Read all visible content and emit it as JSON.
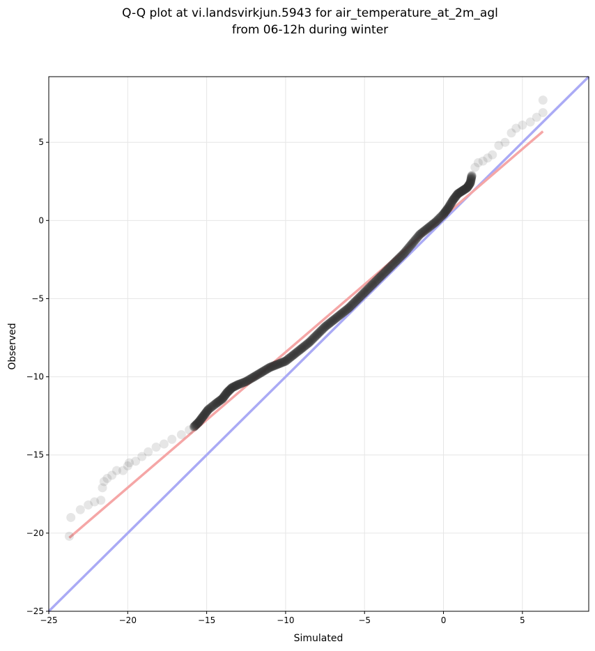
{
  "chart_data": {
    "type": "scatter",
    "title": "Q-Q plot at vi.landsvirkjun.5943 for air_temperature_at_2m_agl",
    "subtitle": "from 06-12h during winter",
    "xlabel": "Simulated",
    "ylabel": "Observed",
    "xlim": [
      -25,
      9.2
    ],
    "ylim": [
      -25,
      9.2
    ],
    "xticks": [
      -25,
      -20,
      -15,
      -10,
      -5,
      0,
      5
    ],
    "yticks": [
      -25,
      -20,
      -15,
      -10,
      -5,
      0,
      5
    ],
    "xtick_labels": [
      "−25",
      "−20",
      "−15",
      "−10",
      "−5",
      "0",
      "5"
    ],
    "ytick_labels": [
      "−25",
      "−20",
      "−15",
      "−10",
      "−5",
      "0",
      "5"
    ],
    "grid": true,
    "colors": {
      "points": "#333333",
      "identity_line": "#aaaaf5",
      "fit_line": "#f5a6a6"
    },
    "quantile_anchors": [
      [
        -23.7,
        -20.2
      ],
      [
        -23.6,
        -19.0
      ],
      [
        -23.0,
        -18.5
      ],
      [
        -22.5,
        -18.2
      ],
      [
        -22.1,
        -18.0
      ],
      [
        -21.7,
        -17.9
      ],
      [
        -21.6,
        -17.1
      ],
      [
        -21.5,
        -16.7
      ],
      [
        -21.3,
        -16.5
      ],
      [
        -21.0,
        -16.3
      ],
      [
        -20.7,
        -16.0
      ],
      [
        -20.3,
        -16.0
      ],
      [
        -20.0,
        -15.7
      ],
      [
        -19.9,
        -15.5
      ],
      [
        -19.5,
        -15.4
      ],
      [
        -19.1,
        -15.1
      ],
      [
        -18.7,
        -14.8
      ],
      [
        -18.2,
        -14.5
      ],
      [
        -17.7,
        -14.3
      ],
      [
        -17.2,
        -14.0
      ],
      [
        -16.6,
        -13.7
      ],
      [
        -16.1,
        -13.4
      ],
      [
        -15.8,
        -13.2
      ],
      [
        -15.5,
        -12.9
      ],
      [
        -15.2,
        -12.5
      ],
      [
        -14.9,
        -12.1
      ],
      [
        -14.4,
        -11.7
      ],
      [
        -14.0,
        -11.4
      ],
      [
        -13.7,
        -11.0
      ],
      [
        -13.4,
        -10.7
      ],
      [
        -13.0,
        -10.5
      ],
      [
        -12.5,
        -10.3
      ],
      [
        -12.0,
        -10.0
      ],
      [
        -11.5,
        -9.7
      ],
      [
        -11.0,
        -9.4
      ],
      [
        -10.5,
        -9.2
      ],
      [
        -10.0,
        -9.0
      ],
      [
        -9.5,
        -8.6
      ],
      [
        -9.0,
        -8.2
      ],
      [
        -8.5,
        -7.8
      ],
      [
        -8.0,
        -7.3
      ],
      [
        -7.5,
        -6.8
      ],
      [
        -7.0,
        -6.4
      ],
      [
        -6.5,
        -6.0
      ],
      [
        -6.0,
        -5.6
      ],
      [
        -5.5,
        -5.1
      ],
      [
        -5.0,
        -4.6
      ],
      [
        -4.5,
        -4.1
      ],
      [
        -4.0,
        -3.6
      ],
      [
        -3.5,
        -3.1
      ],
      [
        -3.0,
        -2.6
      ],
      [
        -2.5,
        -2.1
      ],
      [
        -2.0,
        -1.5
      ],
      [
        -1.5,
        -0.9
      ],
      [
        -1.0,
        -0.5
      ],
      [
        -0.5,
        -0.1
      ],
      [
        0.0,
        0.4
      ],
      [
        0.3,
        0.8
      ],
      [
        0.6,
        1.3
      ],
      [
        0.9,
        1.7
      ],
      [
        1.2,
        1.9
      ],
      [
        1.5,
        2.1
      ],
      [
        1.7,
        2.4
      ],
      [
        1.8,
        2.9
      ],
      [
        2.0,
        3.4
      ],
      [
        2.2,
        3.7
      ],
      [
        2.5,
        3.8
      ],
      [
        2.8,
        4.0
      ],
      [
        3.1,
        4.2
      ],
      [
        3.5,
        4.8
      ],
      [
        3.9,
        5.0
      ],
      [
        4.3,
        5.6
      ],
      [
        4.6,
        5.9
      ],
      [
        5.0,
        6.1
      ],
      [
        5.5,
        6.3
      ],
      [
        5.9,
        6.6
      ],
      [
        6.3,
        6.9
      ],
      [
        6.3,
        7.7
      ]
    ],
    "identity_line": [
      [
        -25,
        -25
      ],
      [
        9.2,
        9.2
      ]
    ],
    "fit_line": [
      [
        -23.7,
        -20.3
      ],
      [
        6.3,
        5.7
      ]
    ]
  }
}
